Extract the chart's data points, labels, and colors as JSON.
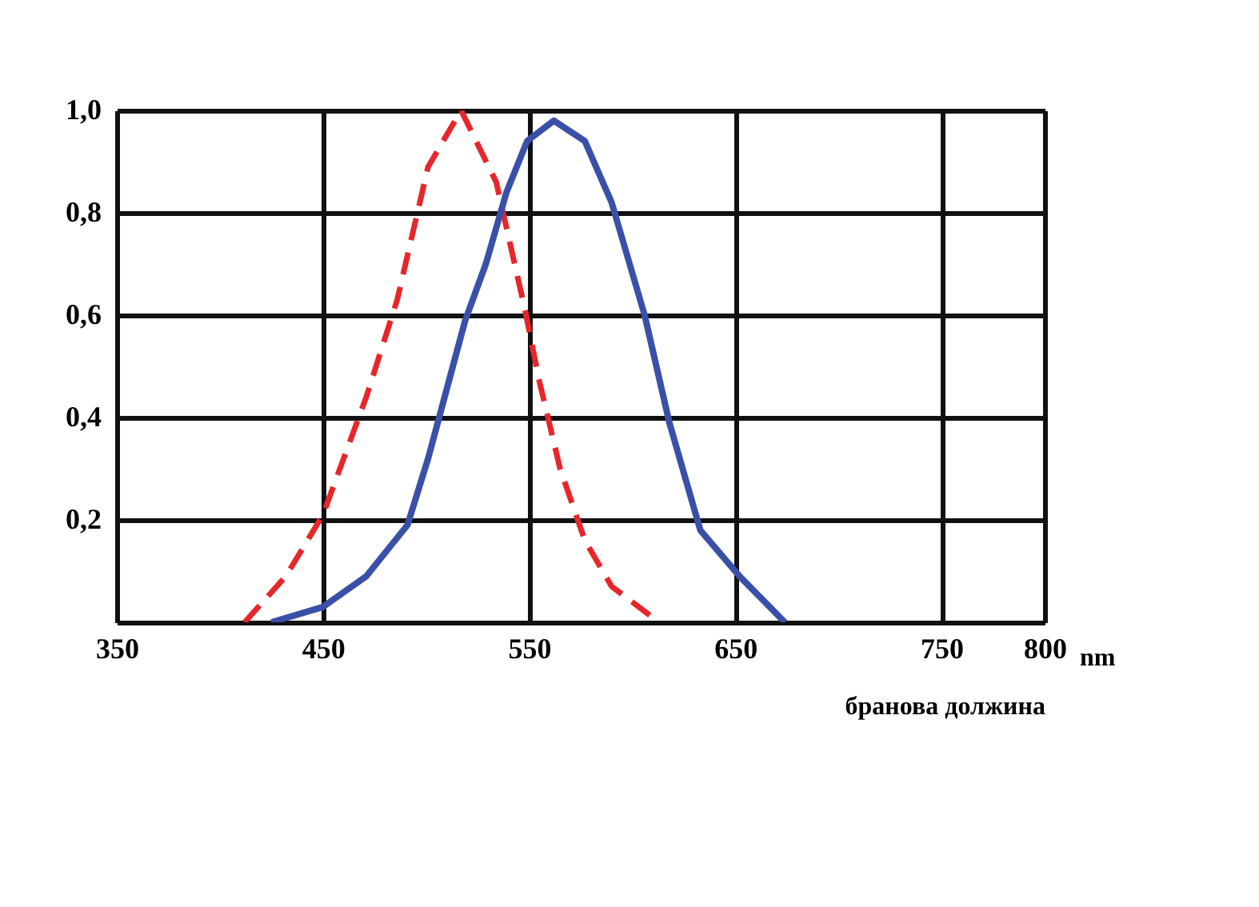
{
  "chart_data": {
    "type": "line",
    "xlabel": "бранова должина",
    "annotations": [
      "nm"
    ],
    "xlim": [
      350,
      800
    ],
    "xticks": [
      350,
      450,
      550,
      650,
      750,
      800
    ],
    "ylim": [
      0,
      1
    ],
    "yticks": [
      {
        "value": 0.2,
        "label": "0,2"
      },
      {
        "value": 0.4,
        "label": "0,4"
      },
      {
        "value": 0.6,
        "label": "0,6"
      },
      {
        "value": 0.8,
        "label": "0,8"
      },
      {
        "value": 1.0,
        "label": "1,0"
      }
    ],
    "grid": true,
    "marker": "none",
    "series": [
      {
        "color": "#e8262a",
        "line_style": "dashed",
        "x": [
          412,
          432,
          450,
          471,
          486,
          501,
          517,
          534,
          548,
          555,
          565,
          577,
          590,
          613
        ],
        "values": [
          0,
          0.09,
          0.21,
          0.44,
          0.63,
          0.89,
          1.0,
          0.86,
          0.61,
          0.47,
          0.3,
          0.16,
          0.07,
          0
        ]
      },
      {
        "color": "#3a50a8",
        "line_style": "solid",
        "x": [
          425,
          450,
          471,
          491,
          501,
          509,
          519,
          529,
          539,
          549,
          562,
          577,
          590,
          606,
          618,
          633,
          652,
          674
        ],
        "values": [
          0,
          0.03,
          0.09,
          0.19,
          0.32,
          0.44,
          0.59,
          0.7,
          0.84,
          0.94,
          0.98,
          0.94,
          0.82,
          0.6,
          0.39,
          0.18,
          0.09,
          0
        ]
      }
    ]
  }
}
